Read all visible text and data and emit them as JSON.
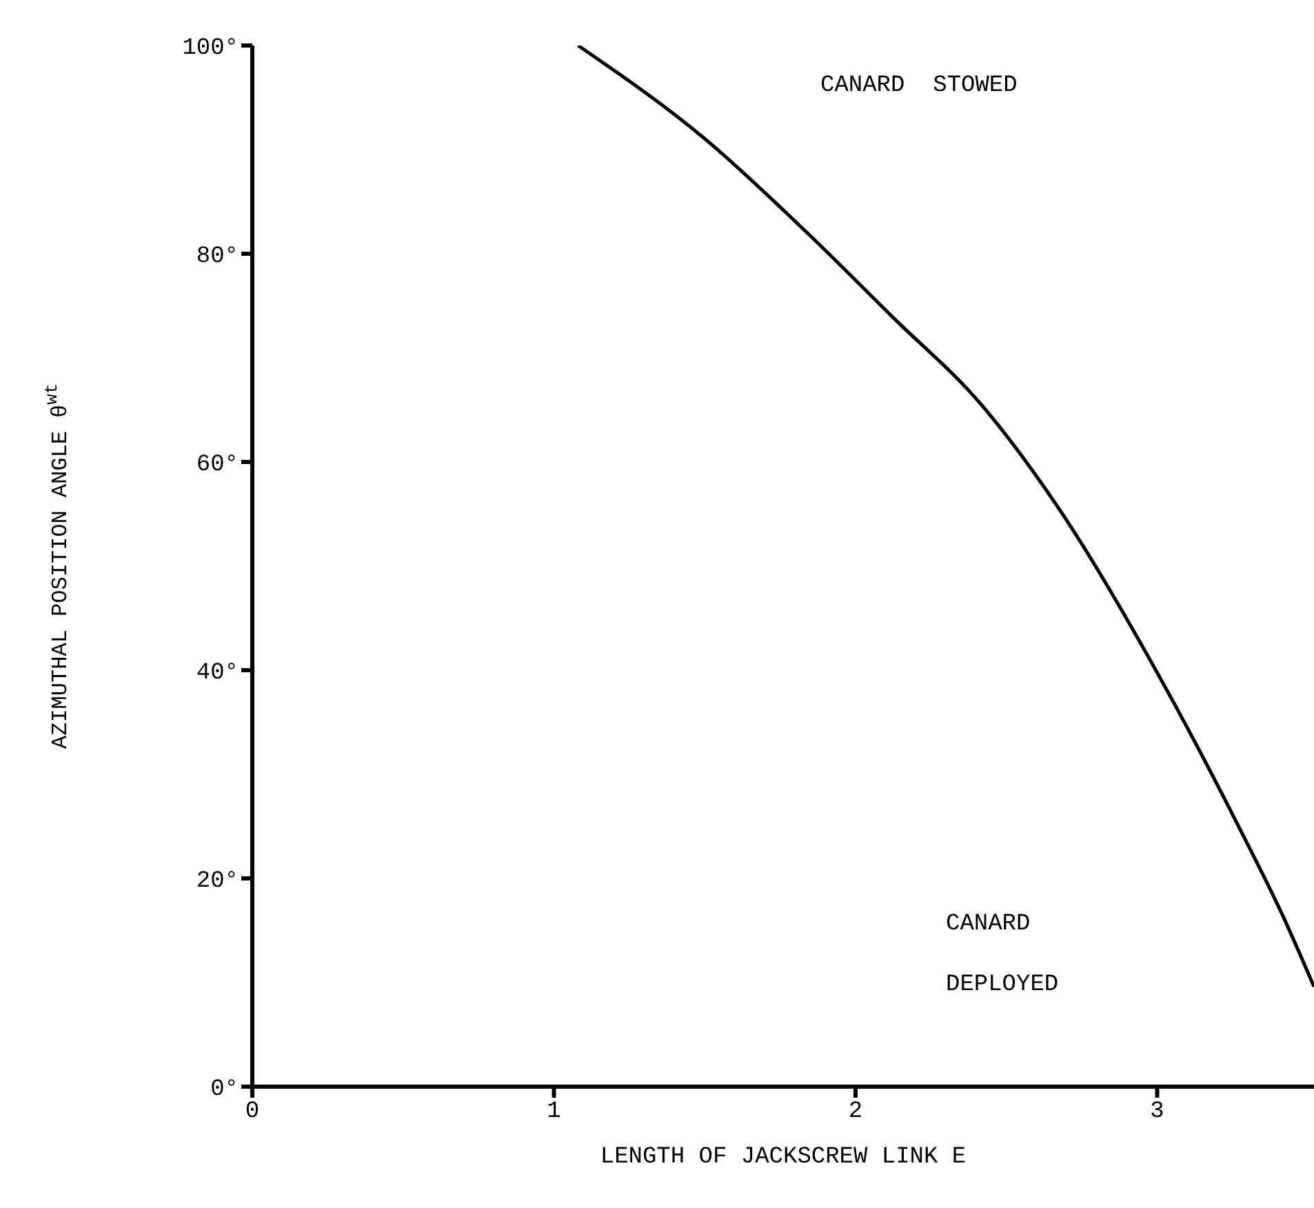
{
  "chart_data": {
    "type": "line",
    "xlabel": "LENGTH OF JACKSCREW LINK E",
    "ylabel": "AZIMUTHAL POSITION ANGLE  θ$^{wt}$",
    "x": [
      1.08,
      1.51,
      1.84,
      2.12,
      2.42,
      2.67,
      3.03,
      3.27,
      3.42,
      3.52
    ],
    "series": [
      {
        "color": "#000000",
        "values": [
          100,
          90.8,
          82,
          74,
          65.4,
          55.7,
          38.2,
          25,
          16.2,
          9.6
        ]
      }
    ],
    "xlim": [
      0,
      3.52
    ],
    "xticks": [
      0,
      1,
      2,
      3
    ],
    "ylim": [
      0,
      100
    ],
    "yticks": [
      {
        "value": 0,
        "label": "0°"
      },
      {
        "value": 20,
        "label": "20°"
      },
      {
        "value": 40,
        "label": "40°"
      },
      {
        "value": 60,
        "label": "60°"
      },
      {
        "value": 80,
        "label": "80°"
      },
      {
        "value": 100,
        "label": "100°"
      }
    ],
    "annotations": [
      "CANARD  STOWED",
      "CANARD\nDEPLOYED"
    ],
    "marker": "none",
    "line_style": "solid"
  }
}
